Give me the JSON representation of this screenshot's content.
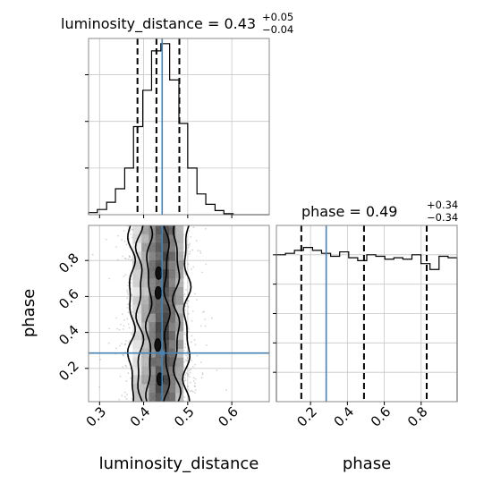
{
  "chart_data": {
    "type": "corner",
    "truth_color": "#4682b4",
    "hist_color": "#000000",
    "scatter_color": "#888888",
    "params": [
      {
        "name": "luminosity_distance",
        "axis_label": "luminosity_distance",
        "range": [
          0.275,
          0.685
        ],
        "ticks": [
          0.3,
          0.4,
          0.5,
          0.6
        ],
        "tick_labels": [
          "0.3",
          "0.4",
          "0.5",
          "0.6"
        ],
        "truth": 0.442,
        "quantiles": [
          0.386,
          0.429,
          0.481
        ],
        "title": {
          "prefix": "luminosity_distance = 0.43",
          "plus": "+0.05",
          "minus": "−0.04"
        },
        "hist_edges": [
          0.275,
          0.295,
          0.316,
          0.336,
          0.357,
          0.377,
          0.398,
          0.418,
          0.439,
          0.459,
          0.48,
          0.5,
          0.521,
          0.541,
          0.562,
          0.582,
          0.603,
          0.623,
          0.644,
          0.664,
          0.685
        ],
        "hist_counts": [
          2,
          5,
          12,
          25,
          45,
          85,
          120,
          158,
          165,
          130,
          88,
          45,
          20,
          10,
          4,
          1,
          0,
          0,
          0,
          0
        ]
      },
      {
        "name": "phase",
        "axis_label": "phase",
        "range": [
          0.015,
          0.995
        ],
        "ticks": [
          0.2,
          0.4,
          0.6,
          0.8
        ],
        "tick_labels": [
          "0.2",
          "0.4",
          "0.6",
          "0.8"
        ],
        "truth": 0.285,
        "quantiles": [
          0.15,
          0.49,
          0.83
        ],
        "title": {
          "prefix": "phase = 0.49",
          "plus": "+0.34",
          "minus": "−0.34"
        },
        "hist_edges": [
          0.015,
          0.064,
          0.113,
          0.162,
          0.211,
          0.26,
          0.309,
          0.358,
          0.407,
          0.456,
          0.505,
          0.554,
          0.603,
          0.652,
          0.701,
          0.75,
          0.799,
          0.848,
          0.897,
          0.946,
          0.995
        ],
        "hist_counts": [
          100,
          101,
          103,
          105,
          103,
          101,
          99,
          102,
          98,
          96,
          100,
          99,
          97,
          98,
          97,
          100,
          94,
          90,
          99,
          98
        ]
      }
    ]
  }
}
